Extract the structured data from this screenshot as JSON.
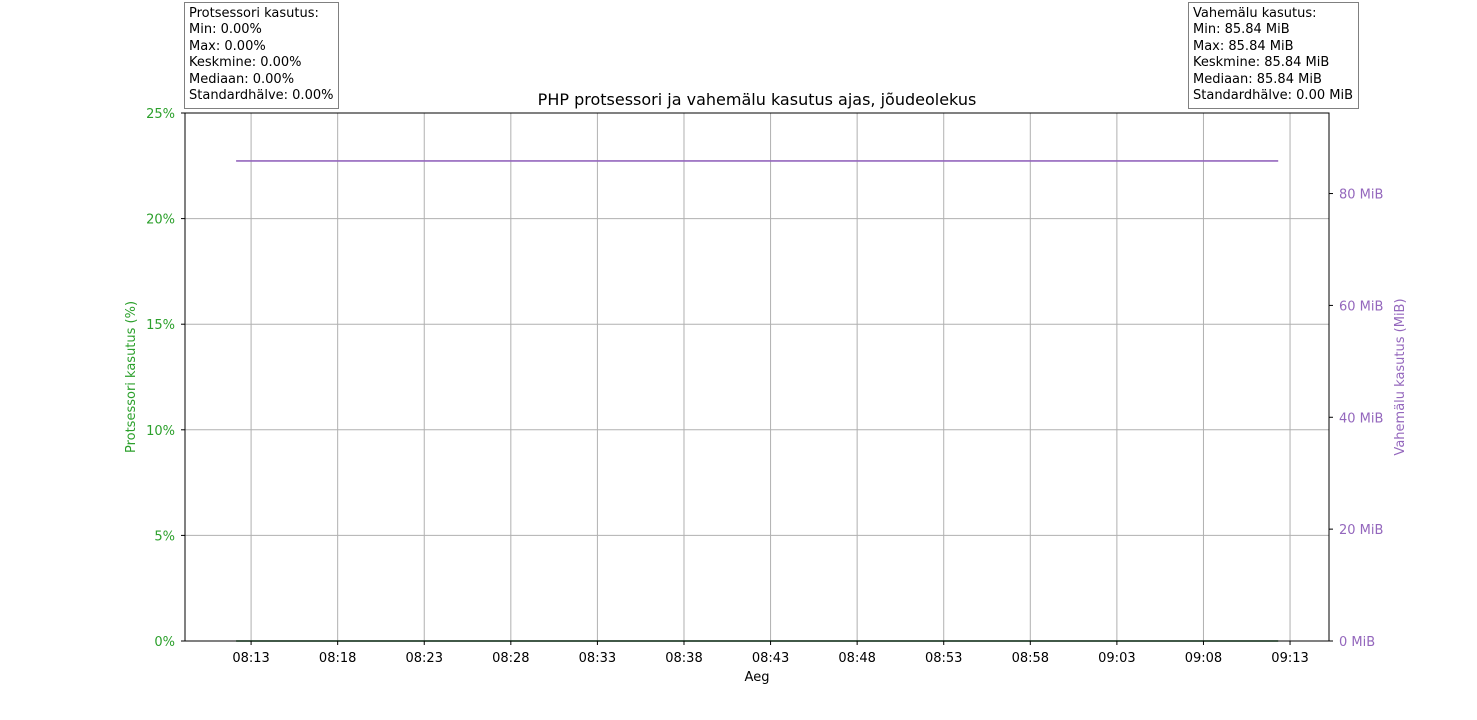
{
  "title": "PHP protsessori ja vahemälu kasutus ajas, jõudeolekus",
  "colors": {
    "cpu": "#2ca02c",
    "cpu_line": "#0b6623",
    "memory": "#9467bd",
    "grid": "#b0b0b0",
    "axes": "#000000"
  },
  "cpu_stats": {
    "heading": "Protsessori kasutus:",
    "min": "Min: 0.00%",
    "max": "Max: 0.00%",
    "mean": "Keskmine: 0.00%",
    "median": "Mediaan: 0.00%",
    "std": "Standardhälve: 0.00%"
  },
  "memory_stats": {
    "heading": "Vahemälu kasutus:",
    "min": "Min: 85.84 MiB",
    "max": "Max: 85.84 MiB",
    "mean": "Keskmine: 85.84 MiB",
    "median": "Mediaan: 85.84 MiB",
    "std": "Standardhälve: 0.00 MiB"
  },
  "chart_data": {
    "type": "line",
    "title": "PHP protsessori ja vahemälu kasutus ajas, jõudeolekus",
    "xlabel": "Aeg",
    "ylabel_left": "Protsessori kasutus (%)",
    "ylabel_right": "Vahemälu kasutus (MiB)",
    "x_ticks": [
      "08:13",
      "08:18",
      "08:23",
      "08:28",
      "08:33",
      "08:38",
      "08:43",
      "08:48",
      "08:53",
      "08:58",
      "09:03",
      "09:08",
      "09:13"
    ],
    "x_range": [
      "08:09:11",
      "09:15:15"
    ],
    "ylim_left": [
      0,
      25
    ],
    "yticks_left": [
      0,
      5,
      10,
      15,
      20,
      25
    ],
    "ytick_labels_left": [
      "0%",
      "5%",
      "10%",
      "15%",
      "20%",
      "25%"
    ],
    "ylim_right": [
      0,
      94.4
    ],
    "yticks_right": [
      0,
      20,
      40,
      60,
      80
    ],
    "ytick_labels_right": [
      "0 MiB",
      "20 MiB",
      "40 MiB",
      "60 MiB",
      "80 MiB"
    ],
    "grid": true,
    "series": [
      {
        "name": "Protsessori kasutus",
        "axis": "left",
        "x": [
          "08:12:08",
          "09:12:19"
        ],
        "y": [
          0,
          0
        ]
      },
      {
        "name": "Vahemälu kasutus",
        "axis": "right",
        "x": [
          "08:12:08",
          "09:12:19"
        ],
        "y": [
          85.84,
          85.84
        ]
      }
    ]
  }
}
